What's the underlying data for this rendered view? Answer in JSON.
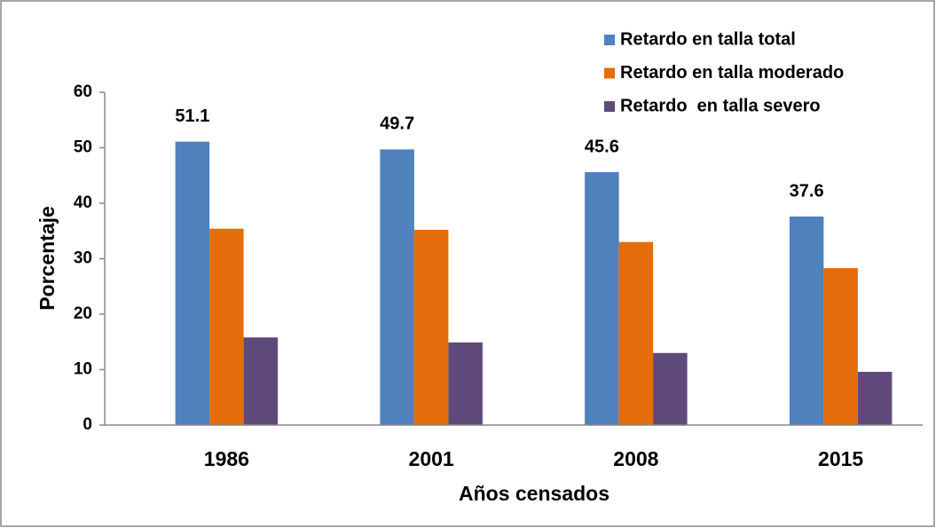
{
  "chart_data": {
    "type": "bar",
    "x_label": "Años censados",
    "y_label": "Porcentaje",
    "categories": [
      "1986",
      "2001",
      "2008",
      "2015"
    ],
    "series": [
      {
        "name": "Retardo en talla total",
        "color": "#4f81bd",
        "values": [
          51.1,
          49.7,
          45.6,
          37.6
        ],
        "data_labels": true
      },
      {
        "name": "Retardo en talla moderado",
        "color": "#e46c0a",
        "values": [
          35.4,
          35.2,
          33.0,
          28.3
        ]
      },
      {
        "name": "Retardo  en talla severo",
        "color": "#604a7b",
        "values": [
          15.8,
          14.9,
          13.0,
          9.6
        ]
      }
    ],
    "ylim": [
      0,
      60
    ],
    "yticks": [
      0,
      10,
      20,
      30,
      40,
      50,
      60
    ],
    "grid": false,
    "legend": "upper right"
  }
}
